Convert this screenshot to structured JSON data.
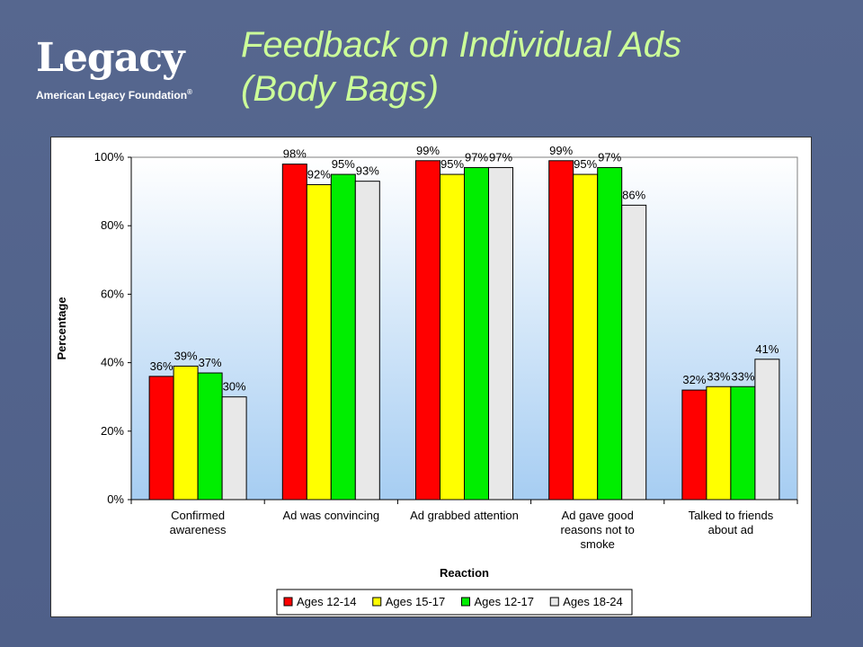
{
  "logo": {
    "wordmark": "Legacy",
    "org": "American Legacy Foundation",
    "reg": "®"
  },
  "title": {
    "line1": "Feedback on Individual Ads",
    "line2": "(Body Bags)"
  },
  "colors": {
    "background": "#56678f",
    "title": "#ccff99",
    "series": [
      "#ff0000",
      "#ffff00",
      "#00ee00",
      "#e8e8e8"
    ]
  },
  "chart_data": {
    "type": "bar",
    "xlabel": "Reaction",
    "ylabel": "Percentage",
    "ylim": [
      0,
      100
    ],
    "yticks": [
      0,
      20,
      40,
      60,
      80,
      100
    ],
    "ytick_labels": [
      "0%",
      "20%",
      "40%",
      "60%",
      "80%",
      "100%"
    ],
    "grid": false,
    "legend_position": "bottom",
    "categories": [
      [
        "Confirmed",
        "awareness"
      ],
      [
        "Ad was convincing"
      ],
      [
        "Ad grabbed attention"
      ],
      [
        "Ad gave good",
        "reasons not to",
        "smoke"
      ],
      [
        "Talked to friends",
        "about ad"
      ]
    ],
    "series": [
      {
        "name": "Ages 12-14",
        "values": [
          36,
          98,
          99,
          99,
          32
        ],
        "labels": [
          "36%",
          "98%",
          "99%",
          "99%",
          "32%"
        ]
      },
      {
        "name": "Ages 15-17",
        "values": [
          39,
          92,
          95,
          95,
          33
        ],
        "labels": [
          "39%",
          "92%",
          "95%",
          "95%",
          "33%"
        ]
      },
      {
        "name": "Ages 12-17",
        "values": [
          37,
          95,
          97,
          97,
          33
        ],
        "labels": [
          "37%",
          "95%",
          "97%",
          "97%",
          "33%"
        ]
      },
      {
        "name": "Ages 18-24",
        "values": [
          30,
          93,
          97,
          86,
          41
        ],
        "labels": [
          "30%",
          "93%",
          "97%",
          "86%",
          "41%"
        ]
      }
    ]
  }
}
